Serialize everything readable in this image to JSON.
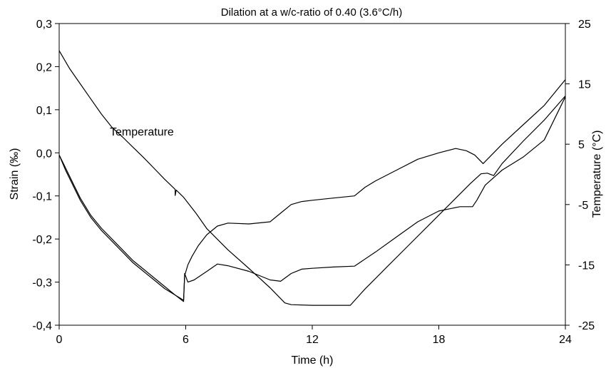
{
  "chart_data": {
    "type": "line",
    "title": "Dilation at a w/c-ratio of 0.40 (3.6°C/h)",
    "xlabel": "Time (h)",
    "ylabel": "Strain (‰)",
    "y2label": "Temperature (°C)",
    "xlim": [
      0,
      24
    ],
    "ylim": [
      -0.4,
      0.3
    ],
    "y2lim": [
      -25,
      25
    ],
    "x_ticks": [
      "0",
      "6",
      "12",
      "18",
      "24"
    ],
    "y_ticks": [
      "-0,4",
      "-0,3",
      "-0,2",
      "-0,1",
      "0,0",
      "0,1",
      "0,2",
      "0,3"
    ],
    "y2_ticks": [
      "-25",
      "-15",
      "-5",
      "5",
      "15",
      "25"
    ],
    "grid": false,
    "annotations": [
      {
        "text": "Temperature",
        "x": 2.4,
        "y": 0.04
      }
    ],
    "series": [
      {
        "axis": "y2",
        "color": "#000000",
        "points": [
          [
            0,
            20.5
          ],
          [
            0.5,
            17.5
          ],
          [
            1.0,
            15.0
          ],
          [
            1.5,
            12.5
          ],
          [
            2.0,
            10.0
          ],
          [
            2.5,
            7.8
          ],
          [
            3.0,
            6.2
          ],
          [
            3.5,
            4.5
          ],
          [
            4.0,
            2.8
          ],
          [
            4.5,
            1.0
          ],
          [
            5.0,
            -0.8
          ],
          [
            5.5,
            -2.5
          ],
          [
            5.5,
            -3.5
          ],
          [
            5.55,
            -2.6
          ],
          [
            5.9,
            -3.8
          ],
          [
            6.5,
            -6.5
          ],
          [
            7.0,
            -9.0
          ],
          [
            8.0,
            -12.5
          ],
          [
            9.0,
            -15.6
          ],
          [
            10.0,
            -18.8
          ],
          [
            10.7,
            -21.3
          ],
          [
            11.0,
            -21.6
          ],
          [
            12.0,
            -21.7
          ],
          [
            13.0,
            -21.7
          ],
          [
            13.8,
            -21.7
          ],
          [
            14.5,
            -19.0
          ],
          [
            15.5,
            -15.5
          ],
          [
            16.5,
            -12.0
          ],
          [
            17.5,
            -8.5
          ],
          [
            18.5,
            -5.0
          ],
          [
            19.5,
            -1.5
          ],
          [
            20.0,
            0.1
          ],
          [
            20.3,
            0.2
          ],
          [
            20.6,
            -0.2
          ],
          [
            21.0,
            1.8
          ],
          [
            22.0,
            5.5
          ],
          [
            23.0,
            9.0
          ],
          [
            24.0,
            13.0
          ]
        ]
      },
      {
        "axis": "y",
        "color": "#000000",
        "points": [
          [
            0,
            -0.005
          ],
          [
            0.3,
            -0.035
          ],
          [
            0.7,
            -0.075
          ],
          [
            1.0,
            -0.105
          ],
          [
            1.5,
            -0.145
          ],
          [
            2.0,
            -0.175
          ],
          [
            2.5,
            -0.2
          ],
          [
            3.0,
            -0.225
          ],
          [
            3.5,
            -0.25
          ],
          [
            4.0,
            -0.27
          ],
          [
            4.5,
            -0.29
          ],
          [
            5.0,
            -0.31
          ],
          [
            5.5,
            -0.33
          ],
          [
            5.9,
            -0.342
          ],
          [
            5.95,
            -0.285
          ],
          [
            6.1,
            -0.26
          ],
          [
            6.3,
            -0.24
          ],
          [
            6.6,
            -0.215
          ],
          [
            7.0,
            -0.19
          ],
          [
            7.5,
            -0.17
          ],
          [
            8.0,
            -0.163
          ],
          [
            9.0,
            -0.165
          ],
          [
            10.0,
            -0.16
          ],
          [
            10.5,
            -0.14
          ],
          [
            11.0,
            -0.12
          ],
          [
            11.5,
            -0.113
          ],
          [
            12.0,
            -0.11
          ],
          [
            13.0,
            -0.105
          ],
          [
            14.0,
            -0.1
          ],
          [
            14.5,
            -0.08
          ],
          [
            15.0,
            -0.065
          ],
          [
            16.0,
            -0.04
          ],
          [
            17.0,
            -0.015
          ],
          [
            18.0,
            0.0
          ],
          [
            18.8,
            0.01
          ],
          [
            19.3,
            0.005
          ],
          [
            19.7,
            -0.005
          ],
          [
            20.1,
            -0.025
          ],
          [
            20.5,
            -0.005
          ],
          [
            21.0,
            0.02
          ],
          [
            22.0,
            0.065
          ],
          [
            23.0,
            0.11
          ],
          [
            24.0,
            0.17
          ]
        ]
      },
      {
        "axis": "y",
        "color": "#000000",
        "points": [
          [
            0,
            -0.005
          ],
          [
            0.3,
            -0.04
          ],
          [
            0.7,
            -0.08
          ],
          [
            1.0,
            -0.11
          ],
          [
            1.5,
            -0.15
          ],
          [
            2.0,
            -0.18
          ],
          [
            2.5,
            -0.205
          ],
          [
            3.0,
            -0.23
          ],
          [
            3.5,
            -0.255
          ],
          [
            4.0,
            -0.275
          ],
          [
            4.5,
            -0.295
          ],
          [
            5.0,
            -0.315
          ],
          [
            5.5,
            -0.33
          ],
          [
            5.9,
            -0.345
          ],
          [
            5.95,
            -0.28
          ],
          [
            6.1,
            -0.3
          ],
          [
            6.4,
            -0.295
          ],
          [
            7.0,
            -0.275
          ],
          [
            7.5,
            -0.258
          ],
          [
            8.0,
            -0.262
          ],
          [
            9.0,
            -0.275
          ],
          [
            10.0,
            -0.295
          ],
          [
            10.5,
            -0.298
          ],
          [
            11.0,
            -0.28
          ],
          [
            11.5,
            -0.27
          ],
          [
            12.0,
            -0.268
          ],
          [
            13.0,
            -0.265
          ],
          [
            14.0,
            -0.263
          ],
          [
            15.0,
            -0.23
          ],
          [
            16.0,
            -0.195
          ],
          [
            17.0,
            -0.16
          ],
          [
            18.0,
            -0.135
          ],
          [
            19.0,
            -0.125
          ],
          [
            19.6,
            -0.125
          ],
          [
            19.8,
            -0.11
          ],
          [
            20.2,
            -0.075
          ],
          [
            21.0,
            -0.04
          ],
          [
            22.0,
            -0.01
          ],
          [
            23.0,
            0.03
          ],
          [
            24.0,
            0.13
          ]
        ]
      }
    ]
  }
}
